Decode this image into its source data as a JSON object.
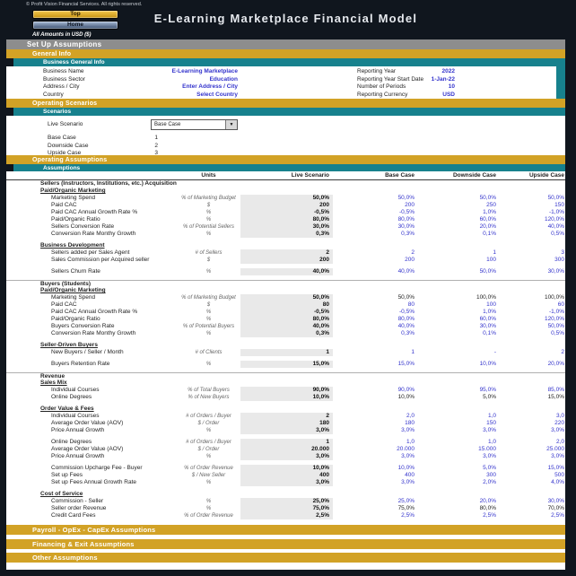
{
  "meta": {
    "copyright": "© Profit Vision Financial Services. All rights reserved.",
    "title": "E-Learning Marketplace Financial Model",
    "amounts_note": "All Amounts in  USD ($)"
  },
  "nav": {
    "top_label": "Top",
    "home_label": "Home"
  },
  "colors": {
    "gold": "#D2A226",
    "teal": "#17818D",
    "gray_bar": "#8D8D8D",
    "input_blue": "#3333CC",
    "dark": "#10161E"
  },
  "sections": {
    "setup": "Set Up Assumptions",
    "general_info": "General Info",
    "business_general_info": "Business General Info",
    "operating_scenarios": "Operating Scenarios",
    "scenarios": "Scenarios",
    "operating_assumptions": "Operating Assumptions",
    "assumptions": "Assumptions",
    "payroll": "Payroll - OpEx - CapEx Assumptions",
    "financing": "Financing & Exit Assumptions",
    "other": "Other Assumptions"
  },
  "general_info": {
    "left": [
      {
        "label": "Business Name",
        "value": "E-Learning Marketplace"
      },
      {
        "label": "Business Sector",
        "value": "Education"
      },
      {
        "label": "Address / City",
        "value": "Enter Address / City"
      },
      {
        "label": "Country",
        "value": "Select Country"
      }
    ],
    "right": [
      {
        "label": "Reporting Year",
        "value": "2022"
      },
      {
        "label": "Reporting Year Start Date",
        "value": "1-Jan-22"
      },
      {
        "label": "Number of Periods",
        "value": "10"
      },
      {
        "label": "Reporting Currency",
        "value": "USD"
      }
    ]
  },
  "scenarios": {
    "live_label": "Live Scenario",
    "live_selected": "Base Case",
    "dropdown_arrow": "▼",
    "list": [
      {
        "label": "Base Case",
        "value": "1"
      },
      {
        "label": "Downside Case",
        "value": "2"
      },
      {
        "label": "Upside Case",
        "value": "3"
      }
    ]
  },
  "assumptions": {
    "columns": {
      "units": "Units",
      "live": "Live Scenario",
      "base": "Base Case",
      "down": "Downside Case",
      "up": "Upside Case"
    },
    "rows": [
      {
        "style": "section",
        "line": false,
        "label": "Sellers (Instructors, Institutions, etc.) Acquisition"
      },
      {
        "style": "subsection",
        "label": "Paid/Organic Marketing"
      },
      {
        "style": "row",
        "color": "blue",
        "label": "Marketing Spend",
        "units": "% of Marketing Budget",
        "live": "50,0%",
        "base": "50,0%",
        "down": "50,0%",
        "up": "50,0%"
      },
      {
        "style": "row",
        "color": "blue",
        "label": "Paid CAC",
        "units": "$",
        "live": "200",
        "base": "200",
        "down": "250",
        "up": "150"
      },
      {
        "style": "row",
        "color": "blue",
        "label": "Paid CAC Annual Growth Rate %",
        "units": "%",
        "live": "-0,5%",
        "base": "-0,5%",
        "down": "1,0%",
        "up": "-1,0%"
      },
      {
        "style": "row",
        "color": "blue",
        "label": "Paid/Organic Ratio",
        "units": "%",
        "live": "80,0%",
        "base": "80,0%",
        "down": "60,0%",
        "up": "120,0%"
      },
      {
        "style": "row",
        "color": "blue",
        "label": "Sellers Conversion Rate",
        "units": "% of Potential Sellers",
        "live": "30,0%",
        "base": "30,0%",
        "down": "20,0%",
        "up": "40,0%"
      },
      {
        "style": "row",
        "color": "blue",
        "label": "Conversion Rate Monthy Growth",
        "units": "%",
        "live": "0,3%",
        "base": "0,3%",
        "down": "0,1%",
        "up": "0,5%"
      },
      {
        "style": "spacer"
      },
      {
        "style": "subsection",
        "label": "Business Development"
      },
      {
        "style": "row",
        "color": "blue",
        "label": "Sellers added per Sales Agent",
        "units": "# of Sellers",
        "live": "2",
        "base": "2",
        "down": "1",
        "up": "3"
      },
      {
        "style": "row",
        "color": "blue",
        "label": "Sales Commission per Acquired seller",
        "units": "$",
        "live": "200",
        "base": "200",
        "down": "100",
        "up": "300"
      },
      {
        "style": "spacer"
      },
      {
        "style": "row",
        "color": "blue",
        "label": "Sellers Churn Rate",
        "units": "%",
        "live": "40,0%",
        "base": "40,0%",
        "down": "50,0%",
        "up": "30,0%"
      },
      {
        "style": "spacer"
      },
      {
        "style": "section",
        "line": true,
        "label": "Buyers (Students)"
      },
      {
        "style": "subsection",
        "label": "Paid/Organic Marketing"
      },
      {
        "style": "row",
        "color": "black",
        "label": "Marketing Spend",
        "units": "% of Marketing Budget",
        "live": "50,0%",
        "base": "50,0%",
        "down": "100,0%",
        "up": "100,0%"
      },
      {
        "style": "row",
        "color": "blue",
        "label": "Paid CAC",
        "units": "$",
        "live": "80",
        "base": "80",
        "down": "100",
        "up": "60"
      },
      {
        "style": "row",
        "color": "blue",
        "label": "Paid CAC Annual Growth Rate %",
        "units": "%",
        "live": "-0,5%",
        "base": "-0,5%",
        "down": "1,0%",
        "up": "-1,0%"
      },
      {
        "style": "row",
        "color": "blue",
        "label": "Paid/Organic Ratio",
        "units": "%",
        "live": "80,0%",
        "base": "80,0%",
        "down": "60,0%",
        "up": "120,0%"
      },
      {
        "style": "row",
        "color": "blue",
        "label": "Buyers Conversion Rate",
        "units": "% of Potential Buyers",
        "live": "40,0%",
        "base": "40,0%",
        "down": "30,0%",
        "up": "50,0%"
      },
      {
        "style": "row",
        "color": "blue",
        "label": "Conversion Rate Monthy Growth",
        "units": "%",
        "live": "0,3%",
        "base": "0,3%",
        "down": "0,1%",
        "up": "0,5%"
      },
      {
        "style": "spacer"
      },
      {
        "style": "subsection",
        "label": "Seller-Driven Buyers"
      },
      {
        "style": "row",
        "color": "blue",
        "label": "New Buyers / Seller / Month",
        "units": "# of Clients",
        "live": "1",
        "base": "1",
        "down": "-",
        "up": "2"
      },
      {
        "style": "spacer"
      },
      {
        "style": "row",
        "color": "blue",
        "label": "Buyers Retention Rate",
        "units": "%",
        "live": "15,0%",
        "base": "15,0%",
        "down": "10,0%",
        "up": "20,0%"
      },
      {
        "style": "spacer"
      },
      {
        "style": "section",
        "line": true,
        "label": "Revenue"
      },
      {
        "style": "subsection",
        "label": "Sales Mix"
      },
      {
        "style": "row",
        "color": "blue",
        "label": "Individual Courses",
        "units": "% of Total Buyers",
        "live": "90,0%",
        "base": "90,0%",
        "down": "95,0%",
        "up": "85,0%"
      },
      {
        "style": "row",
        "color": "black",
        "label": "Online Degrees",
        "units": "% of New Buyers",
        "live": "10,0%",
        "base": "10,0%",
        "down": "5,0%",
        "up": "15,0%"
      },
      {
        "style": "spacer"
      },
      {
        "style": "subsection",
        "label": "Order Value & Fees"
      },
      {
        "style": "row",
        "color": "blue",
        "label": "Individual Courses",
        "units": "# of Orders / Buyer",
        "live": "2",
        "base": "2,0",
        "down": "1,0",
        "up": "3,0"
      },
      {
        "style": "row",
        "color": "blue",
        "label": "Average Order Value (AOV)",
        "units": "$ / Order",
        "live": "180",
        "base": "180",
        "down": "150",
        "up": "220"
      },
      {
        "style": "row",
        "color": "blue",
        "label": "Price Annual Growth",
        "units": "%",
        "live": "3,0%",
        "base": "3,0%",
        "down": "3,0%",
        "up": "3,0%"
      },
      {
        "style": "spacer"
      },
      {
        "style": "row",
        "color": "blue",
        "label": "Online Degrees",
        "units": "# of Orders / Buyer",
        "live": "1",
        "base": "1,0",
        "down": "1,0",
        "up": "2,0"
      },
      {
        "style": "row",
        "color": "blue",
        "label": "Average Order Value (AOV)",
        "units": "$ / Order",
        "live": "20.000",
        "base": "20.000",
        "down": "15.000",
        "up": "25.000"
      },
      {
        "style": "row",
        "color": "blue",
        "label": "Price Annual Growth",
        "units": "%",
        "live": "3,0%",
        "base": "3,0%",
        "down": "3,0%",
        "up": "3,0%"
      },
      {
        "style": "spacer"
      },
      {
        "style": "row",
        "color": "blue",
        "label": "Commission Upcharge Fee - Buyer",
        "units": "% of Order Revenue",
        "live": "10,0%",
        "base": "10,0%",
        "down": "5,0%",
        "up": "15,0%"
      },
      {
        "style": "row",
        "color": "blue",
        "label": "Set up Fees",
        "units": "$ / New Seller",
        "live": "400",
        "base": "400",
        "down": "300",
        "up": "500"
      },
      {
        "style": "row",
        "color": "blue",
        "label": "Set up Fees Annual Growth Rate",
        "units": "%",
        "live": "3,0%",
        "base": "3,0%",
        "down": "2,0%",
        "up": "4,0%"
      },
      {
        "style": "spacer"
      },
      {
        "style": "subsection",
        "label": "Cost of Service"
      },
      {
        "style": "row",
        "color": "blue",
        "label": "Commission - Seller",
        "units": "%",
        "live": "25,0%",
        "base": "25,0%",
        "down": "20,0%",
        "up": "30,0%"
      },
      {
        "style": "row",
        "color": "black",
        "label": "Seller order Revenue",
        "units": "%",
        "live": "75,0%",
        "base": "75,0%",
        "down": "80,0%",
        "up": "70,0%"
      },
      {
        "style": "row",
        "color": "blue",
        "label": "Credit Card Fees",
        "units": "% of Order Revenue",
        "live": "2,5%",
        "base": "2,5%",
        "down": "2,5%",
        "up": "2,5%"
      },
      {
        "style": "spacer"
      }
    ]
  }
}
